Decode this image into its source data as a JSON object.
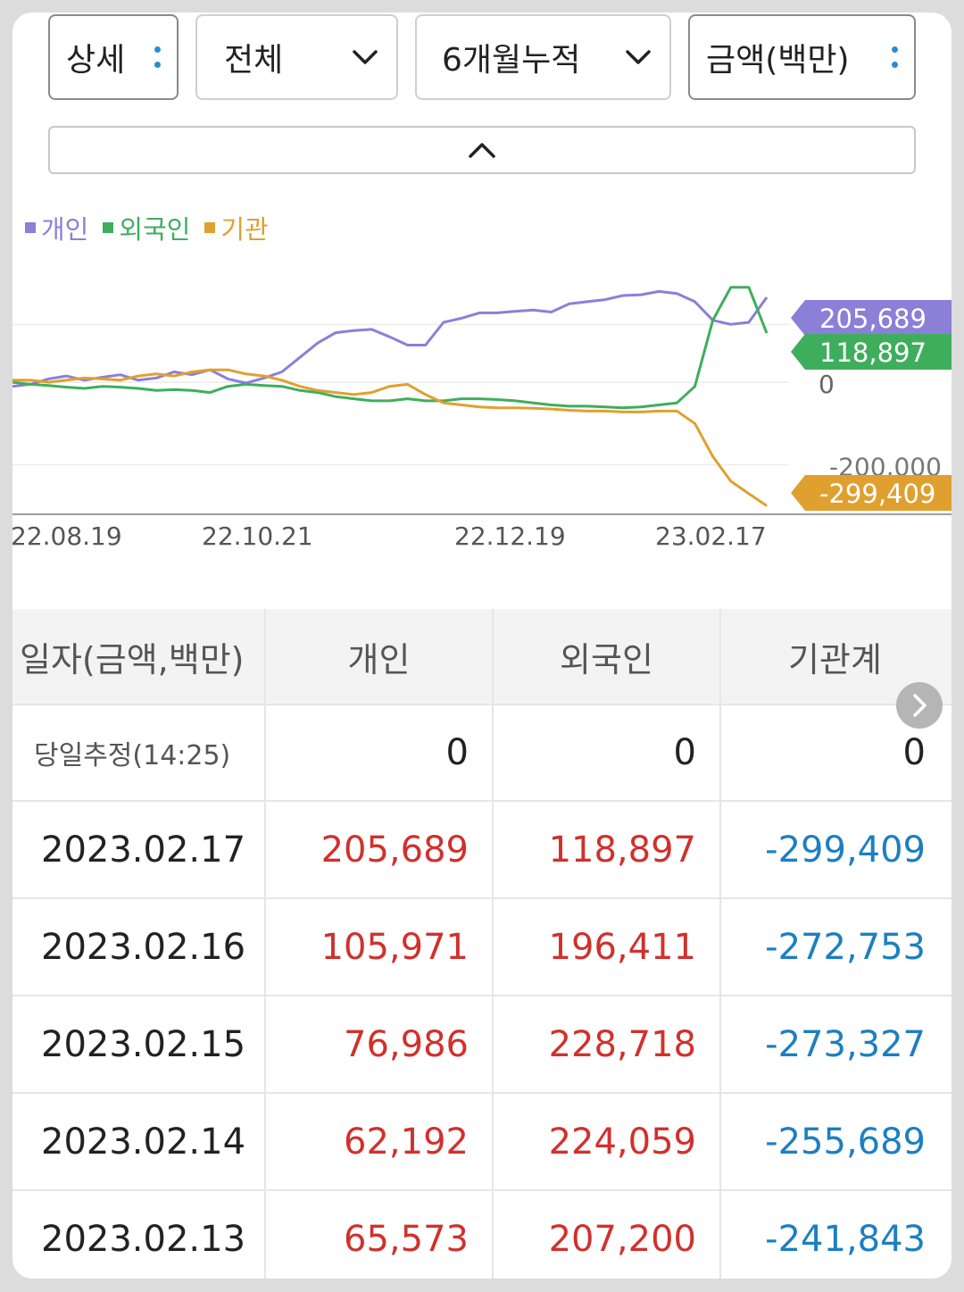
{
  "controls": {
    "detail": "상세",
    "scope": "전체",
    "period": "6개월누적",
    "unit": "금액(백만)"
  },
  "legend": [
    {
      "label": "개인",
      "color": "#8c7fd8"
    },
    {
      "label": "외국인",
      "color": "#3fae5c"
    },
    {
      "label": "기관",
      "color": "#e0a030"
    }
  ],
  "chart_data": {
    "type": "line",
    "x_ticks": [
      "22.08.19",
      "22.10.21",
      "22.12.19",
      "23.02.17"
    ],
    "y_zero_label": "0",
    "series": [
      {
        "name": "개인",
        "color": "#8c7fd8",
        "last_value": 205689,
        "last_label": "205,689",
        "values": [
          -10000,
          -5000,
          8000,
          15000,
          5000,
          12000,
          18000,
          5000,
          10000,
          25000,
          18000,
          30000,
          8000,
          -2000,
          10000,
          25000,
          60000,
          95000,
          120000,
          125000,
          128000,
          110000,
          90000,
          90000,
          145000,
          155000,
          168000,
          168000,
          172000,
          175000,
          170000,
          190000,
          195000,
          200000,
          210000,
          212000,
          220000,
          215000,
          195000,
          150000,
          140000,
          145000,
          205689
        ]
      },
      {
        "name": "외국인",
        "color": "#3fae5c",
        "last_value": 118897,
        "last_label": "118,897",
        "values": [
          0,
          -5000,
          -8000,
          -12000,
          -15000,
          -10000,
          -12000,
          -15000,
          -20000,
          -18000,
          -20000,
          -25000,
          -10000,
          -5000,
          -8000,
          -10000,
          -20000,
          -25000,
          -35000,
          -40000,
          -45000,
          -45000,
          -40000,
          -45000,
          -45000,
          -40000,
          -40000,
          -42000,
          -45000,
          -50000,
          -55000,
          -58000,
          -58000,
          -60000,
          -62000,
          -60000,
          -55000,
          -50000,
          -10000,
          150000,
          230000,
          230000,
          118897
        ]
      },
      {
        "name": "기관",
        "color": "#e0a030",
        "last_value": -299409,
        "last_label": "-299,409",
        "values": [
          5000,
          5000,
          0,
          5000,
          10000,
          8000,
          5000,
          15000,
          20000,
          15000,
          25000,
          30000,
          30000,
          20000,
          15000,
          5000,
          -10000,
          -20000,
          -25000,
          -30000,
          -25000,
          -10000,
          -5000,
          -30000,
          -50000,
          -55000,
          -60000,
          -62000,
          -62000,
          -63000,
          -65000,
          -68000,
          -70000,
          -70000,
          -72000,
          -72000,
          -70000,
          -70000,
          -100000,
          -180000,
          -240000,
          -270000,
          -299409
        ]
      }
    ],
    "ylim": [
      -320000,
      290000
    ],
    "y_partial_tick": "-200,000"
  },
  "table": {
    "headers": [
      "일자(금액,백만)",
      "개인",
      "외국인",
      "기관계"
    ],
    "today": {
      "label": "당일추정(14:25)",
      "values": [
        "0",
        "0",
        "0"
      ]
    },
    "rows": [
      {
        "date": "2023.02.17",
        "personal": "205,689",
        "foreign": "118,897",
        "institution": "-299,409"
      },
      {
        "date": "2023.02.16",
        "personal": "105,971",
        "foreign": "196,411",
        "institution": "-272,753"
      },
      {
        "date": "2023.02.15",
        "personal": "76,986",
        "foreign": "228,718",
        "institution": "-273,327"
      },
      {
        "date": "2023.02.14",
        "personal": "62,192",
        "foreign": "224,059",
        "institution": "-255,689"
      },
      {
        "date": "2023.02.13",
        "personal": "65,573",
        "foreign": "207,200",
        "institution": "-241,843"
      }
    ]
  }
}
